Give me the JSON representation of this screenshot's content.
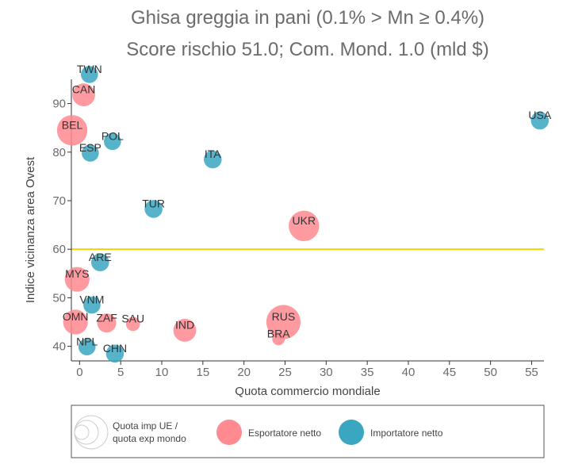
{
  "chart_data": {
    "type": "scatter",
    "title_lines": [
      "Ghisa greggia in pani (0.1% > Mn ≥ 0.4%)",
      "Score rischio 51.0; Com. Mond. 1.0 (mld $)"
    ],
    "xlabel": "Quota commercio mondiale",
    "ylabel": "Indice vicinanza area Ovest",
    "xlim": [
      -1,
      56.5
    ],
    "ylim": [
      37,
      95
    ],
    "xticks": [
      0,
      5,
      10,
      15,
      20,
      25,
      30,
      35,
      40,
      45,
      50,
      55
    ],
    "yticks": [
      40,
      50,
      60,
      70,
      80,
      90
    ],
    "threshold": {
      "y": 60,
      "color": "#f5d000"
    },
    "colors": {
      "exporter": "#ff8a8f",
      "importer": "#3aa6bf"
    },
    "points": [
      {
        "label": "TWN",
        "x": 1.2,
        "y": 96.0,
        "size": 0.2,
        "group": "importer"
      },
      {
        "label": "CAN",
        "x": 0.5,
        "y": 91.8,
        "size": 0.35,
        "group": "exporter"
      },
      {
        "label": "BEL",
        "x": -0.9,
        "y": 84.5,
        "size": 0.55,
        "group": "exporter"
      },
      {
        "label": "POL",
        "x": 4.0,
        "y": 82.2,
        "size": 0.2,
        "group": "importer"
      },
      {
        "label": "ESP",
        "x": 1.3,
        "y": 79.8,
        "size": 0.2,
        "group": "importer"
      },
      {
        "label": "ITA",
        "x": 16.2,
        "y": 78.5,
        "size": 0.22,
        "group": "importer"
      },
      {
        "label": "USA",
        "x": 56.0,
        "y": 86.5,
        "size": 0.22,
        "group": "importer"
      },
      {
        "label": "TUR",
        "x": 9.0,
        "y": 68.3,
        "size": 0.22,
        "group": "importer"
      },
      {
        "label": "UKR",
        "x": 27.3,
        "y": 64.8,
        "size": 0.55,
        "group": "exporter"
      },
      {
        "label": "ARE",
        "x": 2.5,
        "y": 57.3,
        "size": 0.22,
        "group": "importer"
      },
      {
        "label": "MYS",
        "x": -0.3,
        "y": 53.8,
        "size": 0.4,
        "group": "exporter"
      },
      {
        "label": "VNM",
        "x": 1.5,
        "y": 48.5,
        "size": 0.2,
        "group": "importer"
      },
      {
        "label": "OMN",
        "x": -0.5,
        "y": 45.0,
        "size": 0.4,
        "group": "exporter"
      },
      {
        "label": "ZAF",
        "x": 3.3,
        "y": 44.8,
        "size": 0.25,
        "group": "exporter"
      },
      {
        "label": "SAU",
        "x": 6.5,
        "y": 44.6,
        "size": 0.12,
        "group": "exporter"
      },
      {
        "label": "RUS",
        "x": 24.8,
        "y": 45.0,
        "size": 0.65,
        "group": "exporter"
      },
      {
        "label": "BRA",
        "x": 24.2,
        "y": 41.5,
        "size": 0.08,
        "group": "exporter"
      },
      {
        "label": "IND",
        "x": 12.8,
        "y": 43.3,
        "size": 0.35,
        "group": "exporter"
      },
      {
        "label": "NPL",
        "x": 0.9,
        "y": 39.9,
        "size": 0.2,
        "group": "importer"
      },
      {
        "label": "CHN",
        "x": 4.3,
        "y": 38.5,
        "size": 0.22,
        "group": "importer"
      }
    ],
    "legend": {
      "placement": "bottom",
      "size_label": [
        "Quota imp UE /",
        "quota exp mondo"
      ],
      "exporter_label": "Esportatore netto",
      "importer_label": "Importatore netto"
    }
  }
}
